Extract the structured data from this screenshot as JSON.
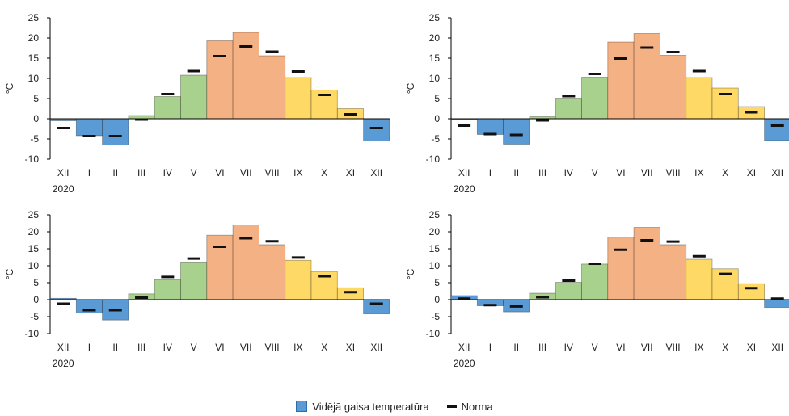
{
  "colors": {
    "winter": "#5b9bd5",
    "spring": "#a9d18e",
    "summer": "#f4b183",
    "autumn": "#ffd966",
    "norm": "#111111",
    "axis": "#000000"
  },
  "legend": {
    "bar_label": "Vidējā gaisa temperatūra",
    "norm_label": "Norma"
  },
  "chart_data": [
    {
      "type": "bar",
      "categories": [
        "XII",
        "I",
        "II",
        "III",
        "IV",
        "V",
        "VI",
        "VII",
        "VIII",
        "IX",
        "X",
        "XI",
        "XII"
      ],
      "year_label": "2020",
      "ylabel": "°C",
      "ylim": [
        -10,
        25
      ],
      "yticks": [
        -10,
        -5,
        0,
        5,
        10,
        15,
        20,
        25
      ],
      "grid": false,
      "season_colors": [
        "winter",
        "winter",
        "winter",
        "spring",
        "spring",
        "spring",
        "summer",
        "summer",
        "summer",
        "autumn",
        "autumn",
        "autumn",
        "winter"
      ],
      "series": [
        {
          "name": "Vidējā gaisa temperatūra",
          "values": [
            -0.5,
            -4.2,
            -6.5,
            0.8,
            5.5,
            10.8,
            19.3,
            21.4,
            15.6,
            10.2,
            7.1,
            2.5,
            -5.5
          ]
        },
        {
          "name": "Norma",
          "values": [
            -2.3,
            -4.3,
            -4.3,
            -0.2,
            6.1,
            11.8,
            15.5,
            17.9,
            16.6,
            11.7,
            5.9,
            1.1,
            -2.3
          ]
        }
      ]
    },
    {
      "type": "bar",
      "categories": [
        "XII",
        "I",
        "II",
        "III",
        "IV",
        "V",
        "VI",
        "VII",
        "VIII",
        "IX",
        "X",
        "XI",
        "XII"
      ],
      "year_label": "2020",
      "ylabel": "°C",
      "ylim": [
        -10,
        25
      ],
      "yticks": [
        -10,
        -5,
        0,
        5,
        10,
        15,
        20,
        25
      ],
      "grid": false,
      "season_colors": [
        "winter",
        "winter",
        "winter",
        "spring",
        "spring",
        "spring",
        "summer",
        "summer",
        "summer",
        "autumn",
        "autumn",
        "autumn",
        "winter"
      ],
      "series": [
        {
          "name": "Vidējā gaisa temperatūra",
          "values": [
            0.0,
            -3.9,
            -6.3,
            0.5,
            5.1,
            10.3,
            19.0,
            21.1,
            15.7,
            10.2,
            7.6,
            3.0,
            -5.4
          ]
        },
        {
          "name": "Norma",
          "values": [
            -1.7,
            -3.8,
            -4.0,
            -0.4,
            5.6,
            11.1,
            14.9,
            17.6,
            16.5,
            11.8,
            6.1,
            1.6,
            -1.7
          ]
        }
      ]
    },
    {
      "type": "bar",
      "categories": [
        "XII",
        "I",
        "II",
        "III",
        "IV",
        "V",
        "VI",
        "VII",
        "VIII",
        "IX",
        "X",
        "XI",
        "XII"
      ],
      "year_label": "2020",
      "ylabel": "°C",
      "ylim": [
        -10,
        25
      ],
      "yticks": [
        -10,
        -5,
        0,
        5,
        10,
        15,
        20,
        25
      ],
      "grid": false,
      "season_colors": [
        "winter",
        "winter",
        "winter",
        "spring",
        "spring",
        "spring",
        "summer",
        "summer",
        "summer",
        "autumn",
        "autumn",
        "autumn",
        "winter"
      ],
      "series": [
        {
          "name": "Vidējā gaisa temperatūra",
          "values": [
            0.4,
            -3.9,
            -6.0,
            1.7,
            5.9,
            11.1,
            19.0,
            22.0,
            16.2,
            11.6,
            8.3,
            3.5,
            -4.2
          ]
        },
        {
          "name": "Norma",
          "values": [
            -1.2,
            -3.1,
            -3.1,
            0.6,
            6.7,
            12.1,
            15.6,
            18.1,
            17.2,
            12.4,
            6.9,
            2.2,
            -1.2
          ]
        }
      ]
    },
    {
      "type": "bar",
      "categories": [
        "XII",
        "I",
        "II",
        "III",
        "IV",
        "V",
        "VI",
        "VII",
        "VIII",
        "IX",
        "X",
        "XI",
        "XII"
      ],
      "year_label": "2020",
      "ylabel": "°C",
      "ylim": [
        -10,
        25
      ],
      "yticks": [
        -10,
        -5,
        0,
        5,
        10,
        15,
        20,
        25
      ],
      "grid": false,
      "season_colors": [
        "winter",
        "winter",
        "winter",
        "spring",
        "spring",
        "spring",
        "summer",
        "summer",
        "summer",
        "autumn",
        "autumn",
        "autumn",
        "winter"
      ],
      "series": [
        {
          "name": "Vidējā gaisa temperatūra",
          "values": [
            1.2,
            -1.8,
            -3.6,
            1.9,
            5.1,
            10.5,
            18.4,
            21.3,
            16.2,
            11.9,
            9.1,
            4.7,
            -2.3
          ]
        },
        {
          "name": "Norma",
          "values": [
            0.3,
            -1.6,
            -2.0,
            0.7,
            5.6,
            10.6,
            14.7,
            17.5,
            17.1,
            12.8,
            7.6,
            3.4,
            0.3
          ]
        }
      ]
    }
  ]
}
